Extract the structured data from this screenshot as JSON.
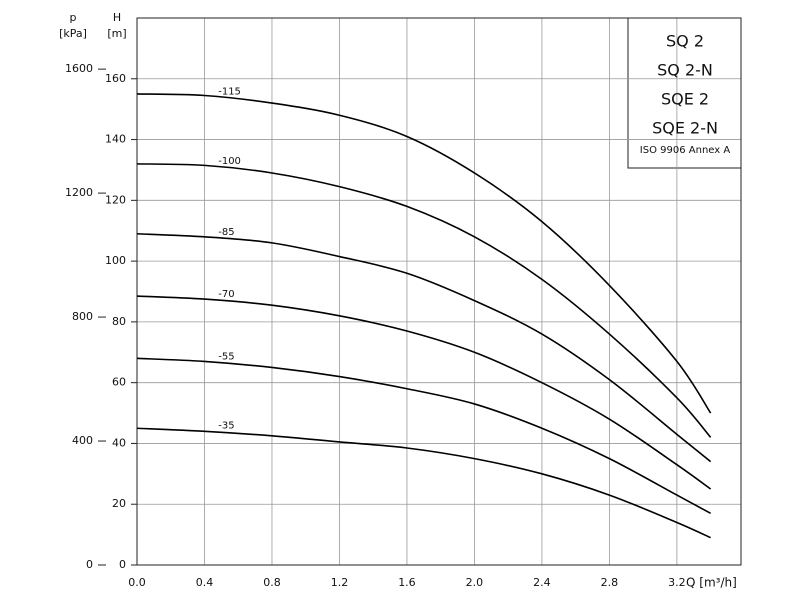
{
  "chart_data": {
    "type": "line",
    "ylabel": [
      "H",
      "[m]"
    ],
    "y2label": [
      "p",
      "[kPa]"
    ],
    "xlabel": "Q [m³/h]",
    "annotations": [
      "SQ 2",
      "SQ 2-N",
      "SQE 2",
      "SQE 2-N",
      "ISO 9906 Annex A"
    ],
    "x": [
      0,
      0.4,
      0.8,
      1.2,
      1.6,
      2.0,
      2.4,
      2.8,
      3.2,
      3.4
    ],
    "xlim": [
      0,
      3.58
    ],
    "xticks": [
      {
        "value": 0,
        "label": "0.0"
      },
      0.4,
      0.8,
      1.2,
      1.6,
      {
        "value": 2,
        "label": "2.0"
      },
      2.4,
      2.8,
      3.2
    ],
    "ylim": [
      0,
      180
    ],
    "yticks": [
      0,
      20,
      40,
      60,
      80,
      100,
      120,
      140,
      160
    ],
    "y2lim": [
      0,
      1765
    ],
    "y2ticks": [
      0,
      400,
      800,
      1200,
      1600
    ],
    "grid": true,
    "series": [
      {
        "name": "-115",
        "color": "#000000",
        "values": [
          155,
          154.5,
          152,
          148,
          141,
          129,
          113,
          92,
          67,
          50
        ]
      },
      {
        "name": "-100",
        "color": "#000000",
        "values": [
          132,
          131.5,
          129,
          124.5,
          118,
          108,
          94,
          76,
          55,
          42
        ]
      },
      {
        "name": "-85",
        "color": "#000000",
        "values": [
          109,
          108,
          106,
          101.5,
          96,
          87,
          76,
          61,
          43,
          34
        ]
      },
      {
        "name": "-70",
        "color": "#000000",
        "values": [
          88.5,
          87.5,
          85.5,
          82,
          77,
          70,
          60,
          48,
          33,
          25
        ]
      },
      {
        "name": "-55",
        "color": "#000000",
        "values": [
          68,
          67,
          65,
          62,
          58,
          53,
          45,
          35,
          23,
          17
        ]
      },
      {
        "name": "-35",
        "color": "#000000",
        "values": [
          45,
          44,
          42.5,
          40.5,
          38.5,
          35,
          30,
          23,
          14,
          9
        ]
      }
    ]
  }
}
